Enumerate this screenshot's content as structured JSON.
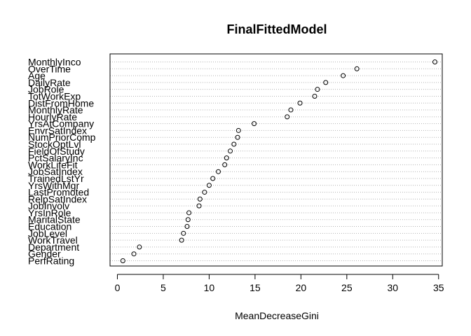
{
  "chart_data": {
    "type": "scatter",
    "variant": "dotchart",
    "title": "FinalFittedModel",
    "xlabel": "MeanDecreaseGini",
    "ylabel": "",
    "xlim": [
      -0.8,
      35.4
    ],
    "xticks": [
      "0",
      "5",
      "10",
      "15",
      "20",
      "25",
      "30",
      "35"
    ],
    "grid": "dotted horizontal lines per variable",
    "marker": "open circle",
    "categories": [
      "MonthlyInco",
      "OverTime",
      "Age",
      "DailyRate",
      "JobRole",
      "TotWorkExp",
      "DistFromHome",
      "MonthlyRate",
      "HourlyRate",
      "YrsAtCompany",
      "EnvrSatIndex",
      "NumPriorComp",
      "StockOptLvl",
      "FieldOfStudy",
      "PctSalaryInc",
      "WorkLifeFit",
      "JobSatIndex",
      "TrainedLstYr",
      "YrsWithMgr",
      "LastPromoted",
      "RelpSatIndex",
      "JobInvolv",
      "YrsInRole",
      "MaritalState",
      "Education",
      "JobLevel",
      "WorkTravel",
      "Department",
      "Gender",
      "PerfRating"
    ],
    "values": [
      34.6,
      26.1,
      24.6,
      22.7,
      21.8,
      21.5,
      19.9,
      18.9,
      18.5,
      14.9,
      13.2,
      13.1,
      12.7,
      12.3,
      11.9,
      11.7,
      11.0,
      10.4,
      10.0,
      9.5,
      9.0,
      8.9,
      7.8,
      7.7,
      7.6,
      7.2,
      7.0,
      2.4,
      1.8,
      0.6
    ]
  }
}
